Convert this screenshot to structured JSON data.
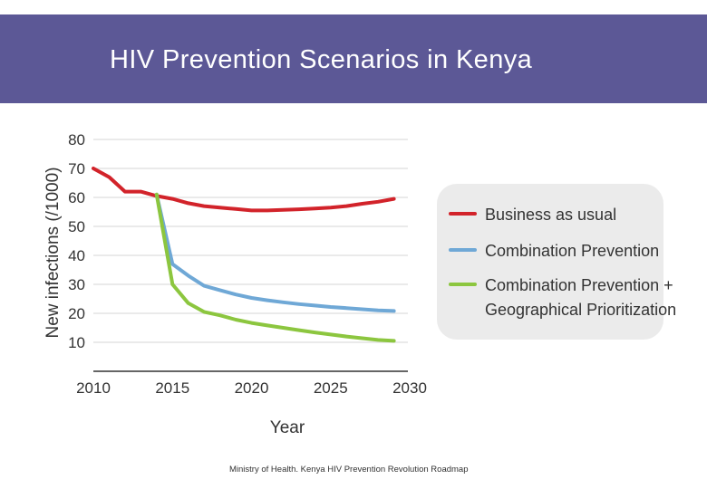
{
  "header": {
    "title": "HIV Prevention Scenarios in Kenya"
  },
  "footnote": "Ministry of Health. Kenya HIV Prevention Revolution Roadmap",
  "colors": {
    "band": "#5c5896",
    "business_as_usual": "#d2232a",
    "combination_prevention": "#6fa8d6",
    "combination_geo": "#8cc63f",
    "grid": "#e3e3e3",
    "legend_bg": "#ebebeb"
  },
  "chart_data": {
    "type": "line",
    "title": "",
    "xlabel": "Year",
    "ylabel": "New infections (/1000)",
    "xlim": [
      2010,
      2030
    ],
    "ylim": [
      0,
      80
    ],
    "xticks": [
      2010,
      2015,
      2020,
      2025,
      2030
    ],
    "yticks": [
      10,
      20,
      30,
      40,
      50,
      60,
      70,
      80
    ],
    "grid": true,
    "legend_position": "right",
    "series": [
      {
        "name": "Business as usual",
        "x": [
          2010,
          2011,
          2012,
          2013,
          2014,
          2015,
          2016,
          2017,
          2018,
          2019,
          2020,
          2021,
          2022,
          2023,
          2024,
          2025,
          2026,
          2027,
          2028,
          2029
        ],
        "y": [
          70,
          67,
          62,
          62,
          60.5,
          59.5,
          58,
          57,
          56.5,
          56,
          55.5,
          55.5,
          55.7,
          55.9,
          56.2,
          56.5,
          57,
          57.8,
          58.5,
          59.5
        ]
      },
      {
        "name": "Combination Prevention",
        "x": [
          2014,
          2015,
          2016,
          2017,
          2018,
          2019,
          2020,
          2021,
          2022,
          2023,
          2024,
          2025,
          2026,
          2027,
          2028,
          2029
        ],
        "y": [
          61,
          37,
          33,
          29.5,
          28,
          26.5,
          25.3,
          24.5,
          23.8,
          23.2,
          22.7,
          22.2,
          21.8,
          21.4,
          21,
          20.8
        ]
      },
      {
        "name": "Combination Prevention + Geographical Prioritization",
        "x": [
          2014,
          2015,
          2016,
          2017,
          2018,
          2019,
          2020,
          2021,
          2022,
          2023,
          2024,
          2025,
          2026,
          2027,
          2028,
          2029
        ],
        "y": [
          61,
          30,
          23.5,
          20.5,
          19.3,
          17.8,
          16.7,
          15.8,
          15,
          14.2,
          13.4,
          12.7,
          12,
          11.4,
          10.8,
          10.5
        ]
      }
    ]
  },
  "legend": {
    "items": [
      {
        "lines": [
          "Business as usual"
        ]
      },
      {
        "lines": [
          "Combination Prevention"
        ]
      },
      {
        "lines": [
          "Combination Prevention +",
          "Geographical Prioritization"
        ]
      }
    ]
  }
}
